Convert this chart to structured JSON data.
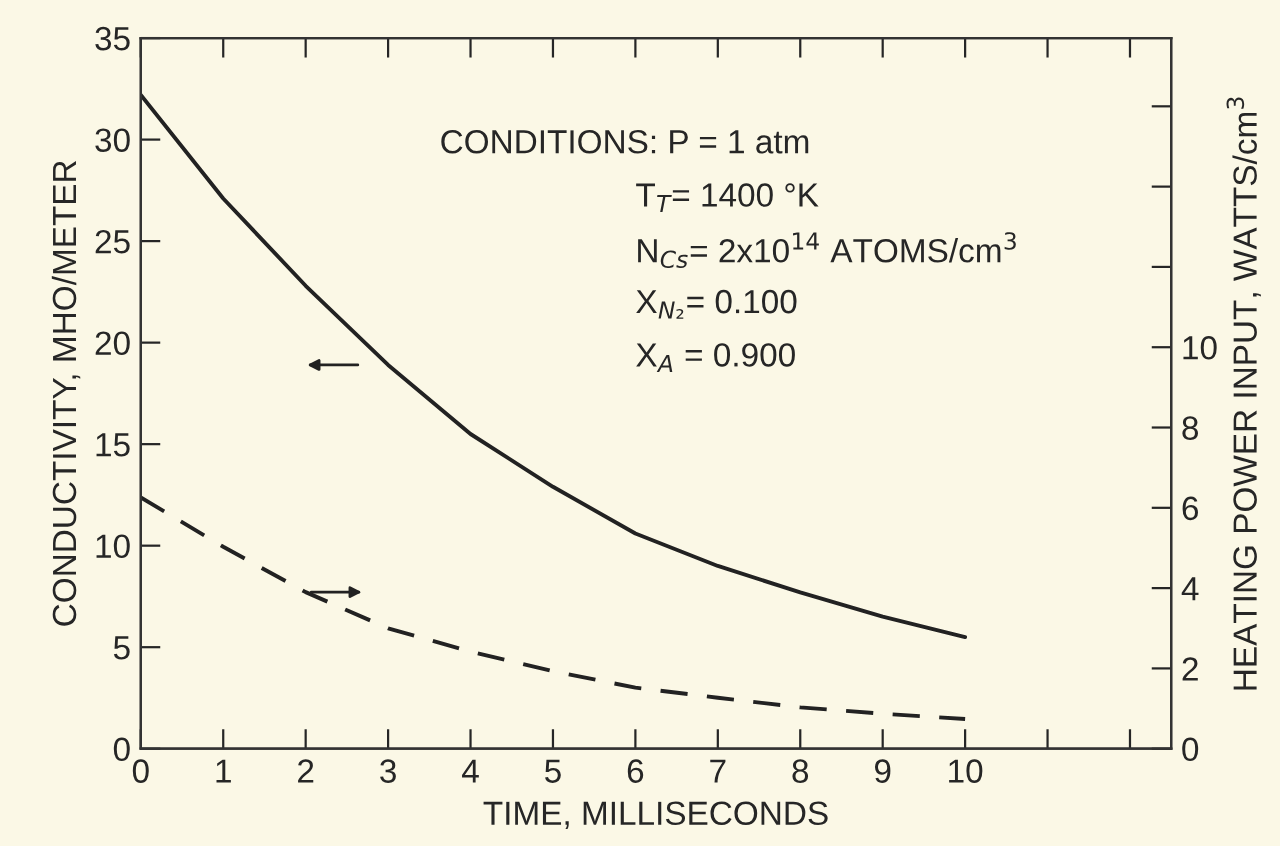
{
  "chart_data": {
    "type": "line",
    "xlabel": "TIME, MILLISECONDS",
    "ylabel": "CONDUCTIVITY, MHO/METER",
    "y2label": "HEATING POWER INPUT, WATTS/cm$^{3}$",
    "x": [
      0,
      1,
      2,
      3,
      4,
      5,
      6,
      7,
      8,
      9,
      10
    ],
    "series": [
      {
        "color": "#222222",
        "line_style": "solid",
        "axis": "y",
        "values": [
          32.2,
          27.1,
          22.8,
          18.9,
          15.5,
          12.9,
          10.6,
          9.0,
          7.7,
          6.5,
          5.5
        ]
      },
      {
        "color": "#222222",
        "line_style": "dashed",
        "axis": "y2",
        "values": [
          6.26,
          5.03,
          3.9,
          3.0,
          2.42,
          1.93,
          1.52,
          1.27,
          1.03,
          0.87,
          0.74
        ]
      }
    ],
    "xlim": [
      0,
      12.5
    ],
    "xticks": [
      0,
      1,
      2,
      3,
      4,
      5,
      6,
      7,
      8,
      9,
      10,
      {
        "value": 11,
        "label": null
      },
      {
        "value": 12,
        "label": null
      }
    ],
    "ylim": [
      0,
      35
    ],
    "yticks": [
      0,
      5,
      10,
      15,
      20,
      25,
      30,
      35
    ],
    "y2lim": [
      0,
      17.7
    ],
    "y2ticks": [
      0,
      2,
      4,
      6,
      8,
      10,
      {
        "value": 12,
        "label": null
      },
      {
        "value": 14,
        "label": null
      },
      {
        "value": 16,
        "label": null
      }
    ],
    "annotations": [
      "CONDITIONS: P = 1 atm",
      "T$_{T}$= 1400 °K",
      "N$_{Cs}$= 2x10$^{14}$ ATOMS/cm$^{3}$",
      "X$_{N₂}$= 0.100",
      "X$_{A}$ = 0.900"
    ],
    "grid": false
  }
}
